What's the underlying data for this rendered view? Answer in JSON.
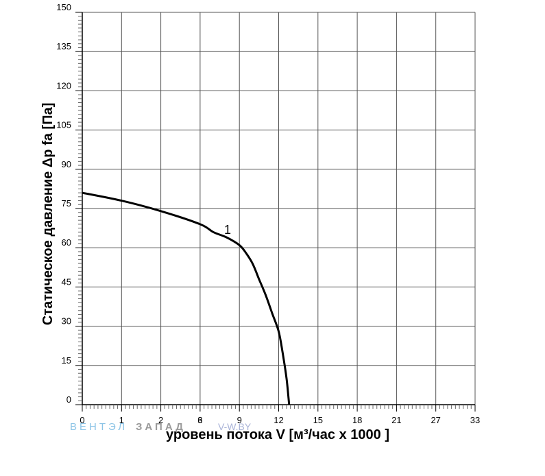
{
  "chart_data": {
    "type": "line",
    "title": "",
    "xlabel": "уровень потока  V [м³/час х 1000 ]",
    "ylabel": "Статическое давление  Δp fa [Па]",
    "x_ticks": [
      "0",
      "1",
      "2",
      "3",
      "6",
      "9",
      "12",
      "15",
      "18",
      "21",
      "27",
      "33"
    ],
    "y_ticks": [
      "0",
      "15",
      "30",
      "45",
      "60",
      "75",
      "90",
      "105",
      "120",
      "135",
      "150"
    ],
    "ylim": [
      0,
      150
    ],
    "grid": true,
    "series": [
      {
        "name": "1",
        "color": "#000000",
        "x": [
          0,
          1,
          2,
          3,
          4,
          5,
          6,
          6.5,
          7,
          7.5,
          8,
          8.5,
          9,
          9.3,
          9.6,
          9.8
        ],
        "y": [
          81,
          78,
          74,
          69,
          66,
          64,
          61,
          58,
          54,
          48,
          42,
          35,
          28,
          20,
          10,
          0
        ]
      }
    ]
  },
  "watermark": {
    "part1": "ВЕНТЭЛ",
    "part2": "ЗАПАД",
    "part3": "V-W.BY"
  }
}
